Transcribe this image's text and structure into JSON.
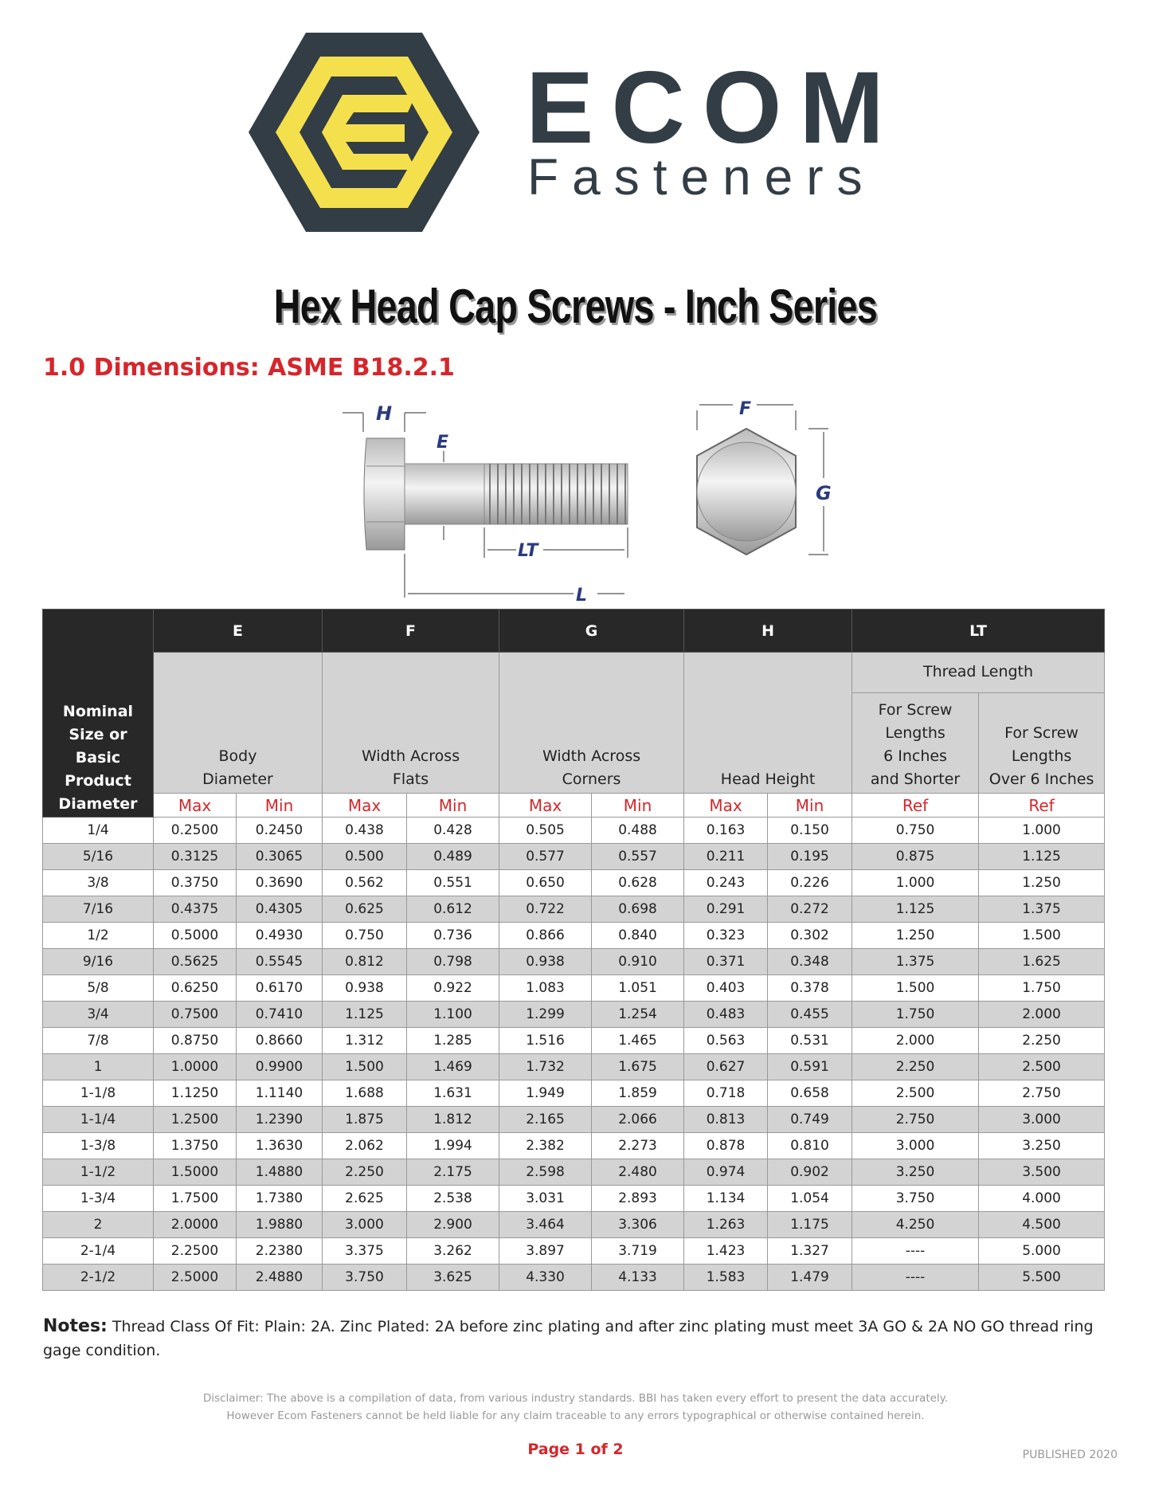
{
  "logo": {
    "word1": "ECOM",
    "word2": "Fasteners",
    "colors": {
      "dark": "#333d45",
      "yellow": "#f4e04d"
    }
  },
  "title": "Hex Head Cap Screws - Inch Series",
  "section": "1.0  Dimensions: ASME B18.2.1",
  "diagram": {
    "labels": {
      "H": "H",
      "E": "E",
      "LT": "LT",
      "L": "L",
      "F": "F",
      "G": "G"
    }
  },
  "table": {
    "nominal_header": [
      "Nominal",
      "Size or",
      "Basic",
      "Product",
      "Diameter"
    ],
    "groups": [
      "E",
      "F",
      "G",
      "H",
      "LT"
    ],
    "descriptions": {
      "E": [
        "Body",
        "Diameter"
      ],
      "F": [
        "Width Across",
        "Flats"
      ],
      "G": [
        "Width Across",
        "Corners"
      ],
      "H": [
        "Head Height"
      ],
      "LT": "Thread Length",
      "LT_short": [
        "For Screw",
        "Lengths",
        "6 Inches",
        "and Shorter"
      ],
      "LT_long": [
        "For Screw",
        "Lengths",
        "Over 6 Inches"
      ]
    },
    "subheaders": [
      "Max",
      "Min",
      "Max",
      "Min",
      "Max",
      "Min",
      "Max",
      "Min",
      "Ref",
      "Ref"
    ],
    "rows": [
      [
        "1/4",
        "0.2500",
        "0.2450",
        "0.438",
        "0.428",
        "0.505",
        "0.488",
        "0.163",
        "0.150",
        "0.750",
        "1.000"
      ],
      [
        "5/16",
        "0.3125",
        "0.3065",
        "0.500",
        "0.489",
        "0.577",
        "0.557",
        "0.211",
        "0.195",
        "0.875",
        "1.125"
      ],
      [
        "3/8",
        "0.3750",
        "0.3690",
        "0.562",
        "0.551",
        "0.650",
        "0.628",
        "0.243",
        "0.226",
        "1.000",
        "1.250"
      ],
      [
        "7/16",
        "0.4375",
        "0.4305",
        "0.625",
        "0.612",
        "0.722",
        "0.698",
        "0.291",
        "0.272",
        "1.125",
        "1.375"
      ],
      [
        "1/2",
        "0.5000",
        "0.4930",
        "0.750",
        "0.736",
        "0.866",
        "0.840",
        "0.323",
        "0.302",
        "1.250",
        "1.500"
      ],
      [
        "9/16",
        "0.5625",
        "0.5545",
        "0.812",
        "0.798",
        "0.938",
        "0.910",
        "0.371",
        "0.348",
        "1.375",
        "1.625"
      ],
      [
        "5/8",
        "0.6250",
        "0.6170",
        "0.938",
        "0.922",
        "1.083",
        "1.051",
        "0.403",
        "0.378",
        "1.500",
        "1.750"
      ],
      [
        "3/4",
        "0.7500",
        "0.7410",
        "1.125",
        "1.100",
        "1.299",
        "1.254",
        "0.483",
        "0.455",
        "1.750",
        "2.000"
      ],
      [
        "7/8",
        "0.8750",
        "0.8660",
        "1.312",
        "1.285",
        "1.516",
        "1.465",
        "0.563",
        "0.531",
        "2.000",
        "2.250"
      ],
      [
        "1",
        "1.0000",
        "0.9900",
        "1.500",
        "1.469",
        "1.732",
        "1.675",
        "0.627",
        "0.591",
        "2.250",
        "2.500"
      ],
      [
        "1-1/8",
        "1.1250",
        "1.1140",
        "1.688",
        "1.631",
        "1.949",
        "1.859",
        "0.718",
        "0.658",
        "2.500",
        "2.750"
      ],
      [
        "1-1/4",
        "1.2500",
        "1.2390",
        "1.875",
        "1.812",
        "2.165",
        "2.066",
        "0.813",
        "0.749",
        "2.750",
        "3.000"
      ],
      [
        "1-3/8",
        "1.3750",
        "1.3630",
        "2.062",
        "1.994",
        "2.382",
        "2.273",
        "0.878",
        "0.810",
        "3.000",
        "3.250"
      ],
      [
        "1-1/2",
        "1.5000",
        "1.4880",
        "2.250",
        "2.175",
        "2.598",
        "2.480",
        "0.974",
        "0.902",
        "3.250",
        "3.500"
      ],
      [
        "1-3/4",
        "1.7500",
        "1.7380",
        "2.625",
        "2.538",
        "3.031",
        "2.893",
        "1.134",
        "1.054",
        "3.750",
        "4.000"
      ],
      [
        "2",
        "2.0000",
        "1.9880",
        "3.000",
        "2.900",
        "3.464",
        "3.306",
        "1.263",
        "1.175",
        "4.250",
        "4.500"
      ],
      [
        "2-1/4",
        "2.2500",
        "2.2380",
        "3.375",
        "3.262",
        "3.897",
        "3.719",
        "1.423",
        "1.327",
        "----",
        "5.000"
      ],
      [
        "2-1/2",
        "2.5000",
        "2.4880",
        "3.750",
        "3.625",
        "4.330",
        "4.133",
        "1.583",
        "1.479",
        "----",
        "5.500"
      ]
    ]
  },
  "notes": {
    "label": "Notes:",
    "text": " Thread Class Of Fit: Plain: 2A. Zinc Plated: 2A before zinc plating and after zinc plating must meet 3A GO & 2A NO GO thread ring gage condition."
  },
  "disclaimer": "Disclaimer: The above is a compilation of data, from various industry standards. BBI has taken every effort to present the data accurately. However Ecom Fasteners cannot be held liable for any claim traceable to any errors typographical or otherwise contained herein.",
  "page": "Page 1 of 2",
  "published": "PUBLISHED 2020"
}
